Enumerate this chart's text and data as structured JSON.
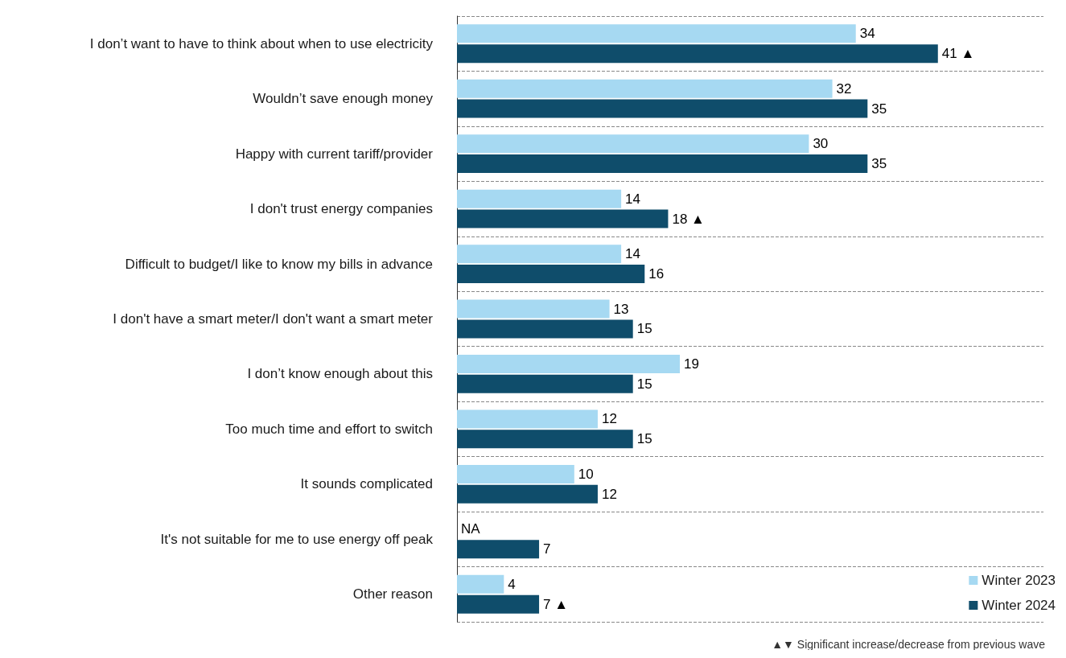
{
  "chart_data": {
    "type": "bar",
    "orientation": "horizontal",
    "categories": [
      "I don’t want to have to think about when to use electricity",
      "Wouldn’t save enough money",
      "Happy with current tariff/provider",
      "I don't trust energy companies",
      "Difficult to budget/I like to know my bills in advance",
      "I don't have a smart meter/I don't want a smart meter",
      "I don’t know enough about this",
      "Too much time and effort to switch",
      "It sounds complicated",
      "It's not suitable for me to use energy off peak",
      "Other reason"
    ],
    "series": [
      {
        "name": "Winter 2023",
        "color": "#a6d9f2",
        "values": [
          34,
          32,
          30,
          14,
          14,
          13,
          19,
          12,
          10,
          null,
          4
        ],
        "value_labels": [
          "34",
          "32",
          "30",
          "14",
          "14",
          "13",
          "19",
          "12",
          "10",
          "NA",
          "4"
        ]
      },
      {
        "name": "Winter 2024",
        "color": "#0f4d6b",
        "values": [
          41,
          35,
          35,
          18,
          16,
          15,
          15,
          15,
          12,
          7,
          7
        ],
        "value_labels": [
          "41 ▲",
          "35",
          "35",
          "18 ▲",
          "16",
          "15",
          "15",
          "15",
          "12",
          "7",
          "7 ▲"
        ]
      }
    ],
    "grid": "y",
    "legend": "bottom right",
    "annotations": [
      "▲▼ Significant increase/decrease from previous wave"
    ]
  }
}
